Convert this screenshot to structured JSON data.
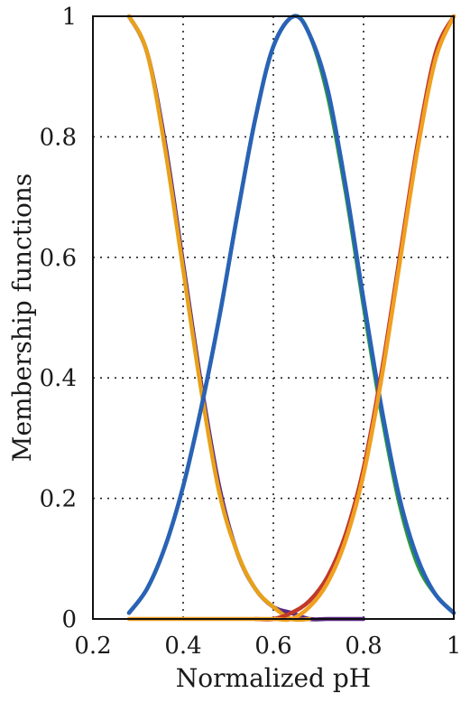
{
  "chart_data": {
    "type": "line",
    "xlabel": "Normalized pH",
    "ylabel": "Membership functions",
    "xlim": [
      0.2,
      1.0
    ],
    "ylim": [
      0,
      1
    ],
    "x_ticks": [
      "0.2",
      "0.4",
      "0.6",
      "0.8",
      "1"
    ],
    "y_ticks": [
      "0",
      "0.2",
      "0.4",
      "0.6",
      "0.8",
      "1"
    ],
    "grid": true,
    "series": [
      {
        "color": "#5b2a86",
        "x": [
          0.28,
          0.32,
          0.36,
          0.4,
          0.44,
          0.48,
          0.52,
          0.56,
          0.6,
          0.64,
          0.68,
          0.72,
          0.76,
          0.8
        ],
        "y": [
          1.0,
          0.94,
          0.79,
          0.59,
          0.39,
          0.22,
          0.11,
          0.05,
          0.02,
          0.01,
          0.0,
          0.0,
          0.0,
          0.0
        ]
      },
      {
        "color": "#e8a11a",
        "x": [
          0.28,
          0.32,
          0.36,
          0.4,
          0.44,
          0.48,
          0.52,
          0.56,
          0.6,
          0.64,
          0.68
        ],
        "y": [
          1.0,
          0.94,
          0.78,
          0.58,
          0.38,
          0.21,
          0.11,
          0.05,
          0.02,
          0.0,
          0.0
        ]
      },
      {
        "color": "#2a9a3a",
        "x": [
          0.28,
          0.32,
          0.36,
          0.4,
          0.44,
          0.48,
          0.52,
          0.56,
          0.6,
          0.645,
          0.68,
          0.72,
          0.76,
          0.8,
          0.84,
          0.88,
          0.92,
          0.96,
          1.0
        ],
        "y": [
          0.01,
          0.05,
          0.12,
          0.22,
          0.35,
          0.5,
          0.67,
          0.83,
          0.95,
          1.0,
          0.97,
          0.87,
          0.71,
          0.52,
          0.34,
          0.19,
          0.09,
          0.04,
          0.01
        ]
      },
      {
        "color": "#2a62b8",
        "x": [
          0.28,
          0.32,
          0.36,
          0.4,
          0.44,
          0.48,
          0.52,
          0.56,
          0.6,
          0.645,
          0.68,
          0.72,
          0.76,
          0.8,
          0.84,
          0.88,
          0.92,
          0.96,
          1.0
        ],
        "y": [
          0.01,
          0.05,
          0.12,
          0.22,
          0.35,
          0.5,
          0.67,
          0.83,
          0.95,
          1.0,
          0.97,
          0.88,
          0.72,
          0.53,
          0.35,
          0.2,
          0.1,
          0.04,
          0.01
        ]
      },
      {
        "color": "#c0392b",
        "x": [
          0.56,
          0.6,
          0.64,
          0.68,
          0.72,
          0.76,
          0.8,
          0.84,
          0.88,
          0.92,
          0.96,
          1.0
        ],
        "y": [
          0.0,
          0.0,
          0.01,
          0.03,
          0.07,
          0.14,
          0.25,
          0.41,
          0.6,
          0.79,
          0.94,
          1.0
        ]
      },
      {
        "color": "#f0a020",
        "x": [
          0.28,
          0.4,
          0.52,
          0.6,
          0.64,
          0.68,
          0.72,
          0.76,
          0.8,
          0.84,
          0.88,
          0.92,
          0.96,
          1.0
        ],
        "y": [
          0.0,
          0.0,
          0.0,
          0.0,
          0.0,
          0.02,
          0.06,
          0.13,
          0.24,
          0.4,
          0.59,
          0.78,
          0.93,
          1.0
        ]
      }
    ]
  }
}
